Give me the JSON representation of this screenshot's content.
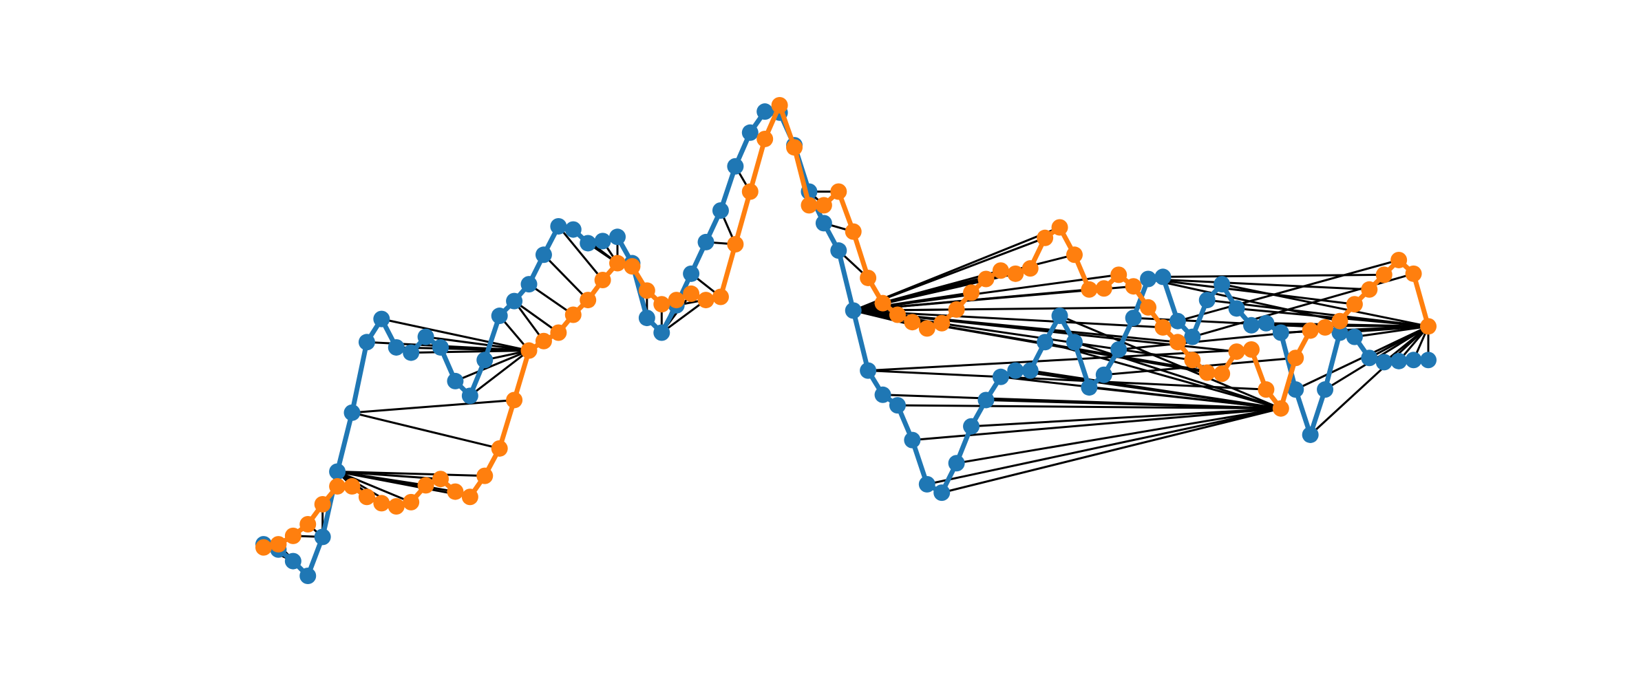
{
  "chart_data": {
    "type": "dtw",
    "series": [
      {
        "color": "#1f77b4",
        "values": [
          4.3,
          3.8,
          2.7,
          1.3,
          5.0,
          11.2,
          16.8,
          23.5,
          25.7,
          23.0,
          22.5,
          24.0,
          23.0,
          19.8,
          18.4,
          21.8,
          26.0,
          27.4,
          29.0,
          31.8,
          34.5,
          34.2,
          32.9,
          33.1,
          33.5,
          31.0,
          25.8,
          24.4,
          27.0,
          30.0,
          33.0,
          36.0,
          40.2,
          43.4,
          45.4,
          45.3,
          42.2,
          37.8,
          34.8,
          32.2,
          26.5,
          20.8,
          18.5,
          17.5,
          14.2,
          10.0,
          9.2,
          12.0,
          15.5,
          18.0,
          20.2,
          20.8,
          20.8,
          23.5,
          26.0,
          23.5,
          19.2,
          20.4,
          22.8,
          25.8,
          29.5,
          29.7,
          25.5,
          24.0,
          27.5,
          29.0,
          26.7,
          25.1,
          25.3,
          24.4,
          19.0,
          14.7,
          19.0,
          24.4,
          24.0,
          22.0,
          21.6,
          21.7,
          21.8,
          21.8
        ]
      },
      {
        "color": "#ff7f0e",
        "values": [
          4.0,
          4.3,
          5.1,
          6.2,
          8.1,
          9.8,
          9.8,
          8.8,
          8.2,
          7.9,
          8.3,
          9.9,
          10.5,
          9.3,
          8.8,
          10.8,
          13.4,
          18.0,
          22.7,
          23.6,
          24.4,
          26.1,
          27.5,
          29.4,
          31.0,
          30.7,
          28.4,
          27.1,
          27.5,
          28.1,
          27.5,
          27.8,
          32.8,
          37.8,
          42.8,
          46.0,
          42.0,
          36.5,
          36.5,
          37.8,
          34.0,
          29.6,
          27.2,
          26.1,
          25.4,
          24.8,
          25.3,
          26.6,
          28.2,
          29.5,
          30.3,
          30.0,
          30.5,
          33.4,
          34.4,
          31.8,
          28.5,
          28.6,
          29.9,
          28.8,
          26.8,
          24.9,
          23.5,
          21.8,
          20.6,
          20.5,
          22.6,
          22.8,
          19.0,
          17.2,
          22.0,
          24.6,
          24.9,
          25.5,
          27.1,
          28.5,
          29.9,
          31.3,
          30.0,
          25.0
        ]
      }
    ],
    "path": [
      [
        0,
        0
      ],
      [
        1,
        0
      ],
      [
        2,
        0
      ],
      [
        3,
        1
      ],
      [
        4,
        2
      ],
      [
        4,
        3
      ],
      [
        4,
        4
      ],
      [
        5,
        5
      ],
      [
        5,
        6
      ],
      [
        5,
        7
      ],
      [
        5,
        8
      ],
      [
        5,
        9
      ],
      [
        5,
        10
      ],
      [
        5,
        11
      ],
      [
        5,
        12
      ],
      [
        5,
        13
      ],
      [
        5,
        14
      ],
      [
        5,
        15
      ],
      [
        6,
        16
      ],
      [
        6,
        17
      ],
      [
        7,
        18
      ],
      [
        8,
        18
      ],
      [
        9,
        18
      ],
      [
        10,
        18
      ],
      [
        11,
        18
      ],
      [
        12,
        18
      ],
      [
        13,
        18
      ],
      [
        14,
        18
      ],
      [
        15,
        18
      ],
      [
        16,
        18
      ],
      [
        17,
        19
      ],
      [
        17,
        20
      ],
      [
        18,
        21
      ],
      [
        19,
        22
      ],
      [
        20,
        23
      ],
      [
        21,
        24
      ],
      [
        22,
        24
      ],
      [
        23,
        24
      ],
      [
        24,
        24
      ],
      [
        25,
        25
      ],
      [
        26,
        26
      ],
      [
        27,
        27
      ],
      [
        27,
        28
      ],
      [
        27,
        29
      ],
      [
        27,
        30
      ],
      [
        28,
        31
      ],
      [
        29,
        31
      ],
      [
        30,
        32
      ],
      [
        31,
        32
      ],
      [
        32,
        33
      ],
      [
        33,
        34
      ],
      [
        34,
        35
      ],
      [
        35,
        35
      ],
      [
        36,
        36
      ],
      [
        37,
        37
      ],
      [
        37,
        38
      ],
      [
        37,
        39
      ],
      [
        38,
        40
      ],
      [
        39,
        41
      ],
      [
        40,
        42
      ],
      [
        40,
        43
      ],
      [
        40,
        44
      ],
      [
        40,
        45
      ],
      [
        40,
        46
      ],
      [
        40,
        47
      ],
      [
        40,
        48
      ],
      [
        40,
        49
      ],
      [
        40,
        50
      ],
      [
        40,
        51
      ],
      [
        40,
        52
      ],
      [
        40,
        53
      ],
      [
        40,
        54
      ],
      [
        40,
        55
      ],
      [
        40,
        56
      ],
      [
        40,
        57
      ],
      [
        40,
        58
      ],
      [
        40,
        59
      ],
      [
        40,
        60
      ],
      [
        40,
        61
      ],
      [
        40,
        62
      ],
      [
        40,
        63
      ],
      [
        40,
        64
      ],
      [
        40,
        65
      ],
      [
        40,
        66
      ],
      [
        41,
        67
      ],
      [
        41,
        68
      ],
      [
        42,
        69
      ],
      [
        43,
        69
      ],
      [
        44,
        69
      ],
      [
        45,
        69
      ],
      [
        46,
        69
      ],
      [
        47,
        69
      ],
      [
        48,
        69
      ],
      [
        49,
        69
      ],
      [
        50,
        69
      ],
      [
        51,
        69
      ],
      [
        52,
        69
      ],
      [
        53,
        69
      ],
      [
        54,
        69
      ],
      [
        55,
        69
      ],
      [
        56,
        69
      ],
      [
        57,
        70
      ],
      [
        58,
        71
      ],
      [
        59,
        72
      ],
      [
        60,
        73
      ],
      [
        60,
        74
      ],
      [
        60,
        75
      ],
      [
        61,
        76
      ],
      [
        62,
        77
      ],
      [
        63,
        78
      ],
      [
        64,
        79
      ],
      [
        65,
        79
      ],
      [
        66,
        79
      ],
      [
        67,
        79
      ],
      [
        68,
        79
      ],
      [
        69,
        79
      ],
      [
        70,
        79
      ],
      [
        71,
        79
      ],
      [
        72,
        79
      ],
      [
        73,
        79
      ],
      [
        74,
        79
      ],
      [
        75,
        79
      ],
      [
        76,
        79
      ],
      [
        77,
        79
      ],
      [
        78,
        79
      ],
      [
        79,
        79
      ]
    ],
    "path_color": "#000000"
  }
}
